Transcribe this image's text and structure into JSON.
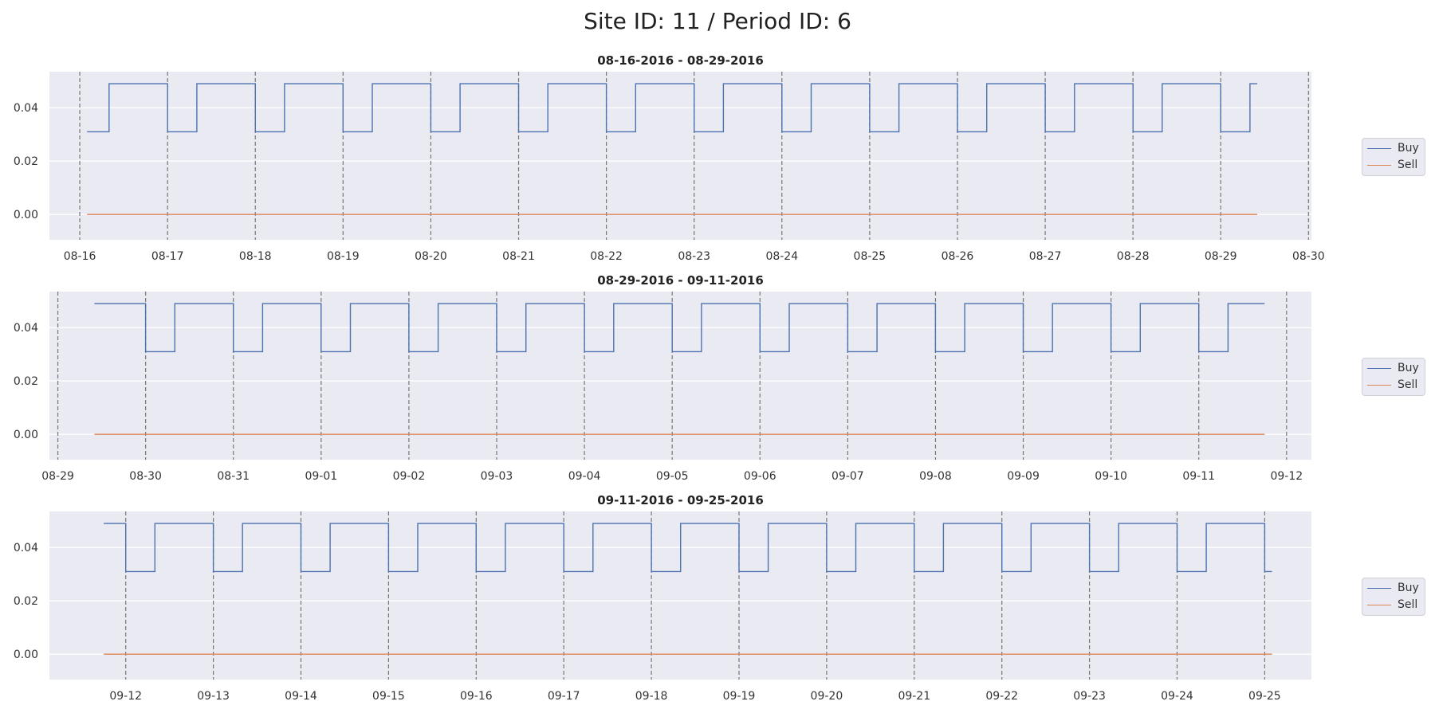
{
  "title": "Site ID: 11 / Period ID: 6",
  "colors": {
    "buy": "#4c72b0",
    "sell": "#dd8452",
    "background": "#eaeaf2",
    "grid": "#ffffff",
    "day_line": "#777777"
  },
  "chart_data": [
    {
      "type": "line",
      "title": "08-16-2016 - 08-29-2016",
      "xlim": [
        "2016-08-15T15:42",
        "2016-08-30T00:48"
      ],
      "ylim": [
        -0.0095,
        0.0535
      ],
      "yticks": [
        0.0,
        0.02,
        0.04
      ],
      "ytick_labels": [
        "0.00",
        "0.02",
        "0.04"
      ],
      "xtick_labels": [
        "08-16",
        "08-17",
        "08-18",
        "08-19",
        "08-20",
        "08-21",
        "08-22",
        "08-23",
        "08-24",
        "08-25",
        "08-26",
        "08-27",
        "08-28",
        "08-29",
        "08-30"
      ],
      "grid": "horizontal",
      "vertical_day_lines": true,
      "legend": "right",
      "series": [
        {
          "name": "Buy",
          "x": [
            "2016-08-16T02:00",
            "2016-08-16T08:00",
            "2016-08-16T08:00",
            "2016-08-17T00:00",
            "2016-08-17T00:00",
            "2016-08-17T08:00",
            "2016-08-17T08:00",
            "2016-08-18T00:00",
            "2016-08-18T00:00",
            "2016-08-18T08:00",
            "2016-08-18T08:00",
            "2016-08-19T00:00",
            "2016-08-19T00:00",
            "2016-08-19T08:00",
            "2016-08-19T08:00",
            "2016-08-20T00:00",
            "2016-08-20T00:00",
            "2016-08-20T08:00",
            "2016-08-20T08:00",
            "2016-08-21T00:00",
            "2016-08-21T00:00",
            "2016-08-21T08:00",
            "2016-08-21T08:00",
            "2016-08-22T00:00",
            "2016-08-22T00:00",
            "2016-08-22T08:00",
            "2016-08-22T08:00",
            "2016-08-23T00:00",
            "2016-08-23T00:00",
            "2016-08-23T08:00",
            "2016-08-23T08:00",
            "2016-08-24T00:00",
            "2016-08-24T00:00",
            "2016-08-24T08:00",
            "2016-08-24T08:00",
            "2016-08-25T00:00",
            "2016-08-25T00:00",
            "2016-08-25T08:00",
            "2016-08-25T08:00",
            "2016-08-26T00:00",
            "2016-08-26T00:00",
            "2016-08-26T08:00",
            "2016-08-26T08:00",
            "2016-08-27T00:00",
            "2016-08-27T00:00",
            "2016-08-27T08:00",
            "2016-08-27T08:00",
            "2016-08-28T00:00",
            "2016-08-28T00:00",
            "2016-08-28T08:00",
            "2016-08-28T08:00",
            "2016-08-29T00:00",
            "2016-08-29T00:00",
            "2016-08-29T08:00",
            "2016-08-29T08:00",
            "2016-08-29T10:00"
          ],
          "y": [
            0.031,
            0.031,
            0.049,
            0.049,
            0.031,
            0.031,
            0.049,
            0.049,
            0.031,
            0.031,
            0.049,
            0.049,
            0.031,
            0.031,
            0.049,
            0.049,
            0.031,
            0.031,
            0.049,
            0.049,
            0.031,
            0.031,
            0.049,
            0.049,
            0.031,
            0.031,
            0.049,
            0.049,
            0.031,
            0.031,
            0.049,
            0.049,
            0.031,
            0.031,
            0.049,
            0.049,
            0.031,
            0.031,
            0.049,
            0.049,
            0.031,
            0.031,
            0.049,
            0.049,
            0.031,
            0.031,
            0.049,
            0.049,
            0.031,
            0.031,
            0.049,
            0.049,
            0.031,
            0.031,
            0.049,
            0.049
          ]
        },
        {
          "name": "Sell",
          "x": [
            "2016-08-16T02:00",
            "2016-08-29T10:00"
          ],
          "y": [
            0.0,
            0.0
          ]
        }
      ]
    },
    {
      "type": "line",
      "title": "08-29-2016 - 09-11-2016",
      "xlim": [
        "2016-08-28T21:42",
        "2016-09-12T06:48"
      ],
      "ylim": [
        -0.0095,
        0.0535
      ],
      "yticks": [
        0.0,
        0.02,
        0.04
      ],
      "ytick_labels": [
        "0.00",
        "0.02",
        "0.04"
      ],
      "xtick_labels": [
        "08-29",
        "08-30",
        "08-31",
        "09-01",
        "09-02",
        "09-03",
        "09-04",
        "09-05",
        "09-06",
        "09-07",
        "09-08",
        "09-09",
        "09-10",
        "09-11",
        "09-12"
      ],
      "grid": "horizontal",
      "vertical_day_lines": true,
      "legend": "right",
      "series": [
        {
          "name": "Buy",
          "x": [
            "2016-08-29T10:00",
            "2016-08-30T00:00",
            "2016-08-30T00:00",
            "2016-08-30T08:00",
            "2016-08-30T08:00",
            "2016-08-31T00:00",
            "2016-08-31T00:00",
            "2016-08-31T08:00",
            "2016-08-31T08:00",
            "2016-09-01T00:00",
            "2016-09-01T00:00",
            "2016-09-01T08:00",
            "2016-09-01T08:00",
            "2016-09-02T00:00",
            "2016-09-02T00:00",
            "2016-09-02T08:00",
            "2016-09-02T08:00",
            "2016-09-03T00:00",
            "2016-09-03T00:00",
            "2016-09-03T08:00",
            "2016-09-03T08:00",
            "2016-09-04T00:00",
            "2016-09-04T00:00",
            "2016-09-04T08:00",
            "2016-09-04T08:00",
            "2016-09-05T00:00",
            "2016-09-05T00:00",
            "2016-09-05T08:00",
            "2016-09-05T08:00",
            "2016-09-06T00:00",
            "2016-09-06T00:00",
            "2016-09-06T08:00",
            "2016-09-06T08:00",
            "2016-09-07T00:00",
            "2016-09-07T00:00",
            "2016-09-07T08:00",
            "2016-09-07T08:00",
            "2016-09-08T00:00",
            "2016-09-08T00:00",
            "2016-09-08T08:00",
            "2016-09-08T08:00",
            "2016-09-09T00:00",
            "2016-09-09T00:00",
            "2016-09-09T08:00",
            "2016-09-09T08:00",
            "2016-09-10T00:00",
            "2016-09-10T00:00",
            "2016-09-10T08:00",
            "2016-09-10T08:00",
            "2016-09-11T00:00",
            "2016-09-11T00:00",
            "2016-09-11T08:00",
            "2016-09-11T08:00",
            "2016-09-11T18:00"
          ],
          "y": [
            0.049,
            0.049,
            0.031,
            0.031,
            0.049,
            0.049,
            0.031,
            0.031,
            0.049,
            0.049,
            0.031,
            0.031,
            0.049,
            0.049,
            0.031,
            0.031,
            0.049,
            0.049,
            0.031,
            0.031,
            0.049,
            0.049,
            0.031,
            0.031,
            0.049,
            0.049,
            0.031,
            0.031,
            0.049,
            0.049,
            0.031,
            0.031,
            0.049,
            0.049,
            0.031,
            0.031,
            0.049,
            0.049,
            0.031,
            0.031,
            0.049,
            0.049,
            0.031,
            0.031,
            0.049,
            0.049,
            0.031,
            0.031,
            0.049,
            0.049,
            0.031,
            0.031,
            0.049,
            0.049
          ]
        },
        {
          "name": "Sell",
          "x": [
            "2016-08-29T10:00",
            "2016-09-11T18:00"
          ],
          "y": [
            0.0,
            0.0
          ]
        }
      ]
    },
    {
      "type": "line",
      "title": "09-11-2016 - 09-25-2016",
      "xlim": [
        "2016-09-11T03:06",
        "2016-09-25T12:48"
      ],
      "ylim": [
        -0.0095,
        0.0535
      ],
      "yticks": [
        0.0,
        0.02,
        0.04
      ],
      "ytick_labels": [
        "0.00",
        "0.02",
        "0.04"
      ],
      "xtick_labels": [
        "09-12",
        "09-13",
        "09-14",
        "09-15",
        "09-16",
        "09-17",
        "09-18",
        "09-19",
        "09-20",
        "09-21",
        "09-22",
        "09-23",
        "09-24",
        "09-25"
      ],
      "grid": "horizontal",
      "vertical_day_lines": true,
      "legend": "right",
      "series": [
        {
          "name": "Buy",
          "x": [
            "2016-09-11T18:00",
            "2016-09-12T00:00",
            "2016-09-12T00:00",
            "2016-09-12T08:00",
            "2016-09-12T08:00",
            "2016-09-13T00:00",
            "2016-09-13T00:00",
            "2016-09-13T08:00",
            "2016-09-13T08:00",
            "2016-09-14T00:00",
            "2016-09-14T00:00",
            "2016-09-14T08:00",
            "2016-09-14T08:00",
            "2016-09-15T00:00",
            "2016-09-15T00:00",
            "2016-09-15T08:00",
            "2016-09-15T08:00",
            "2016-09-16T00:00",
            "2016-09-16T00:00",
            "2016-09-16T08:00",
            "2016-09-16T08:00",
            "2016-09-17T00:00",
            "2016-09-17T00:00",
            "2016-09-17T08:00",
            "2016-09-17T08:00",
            "2016-09-18T00:00",
            "2016-09-18T00:00",
            "2016-09-18T08:00",
            "2016-09-18T08:00",
            "2016-09-19T00:00",
            "2016-09-19T00:00",
            "2016-09-19T08:00",
            "2016-09-19T08:00",
            "2016-09-20T00:00",
            "2016-09-20T00:00",
            "2016-09-20T08:00",
            "2016-09-20T08:00",
            "2016-09-21T00:00",
            "2016-09-21T00:00",
            "2016-09-21T08:00",
            "2016-09-21T08:00",
            "2016-09-22T00:00",
            "2016-09-22T00:00",
            "2016-09-22T08:00",
            "2016-09-22T08:00",
            "2016-09-23T00:00",
            "2016-09-23T00:00",
            "2016-09-23T08:00",
            "2016-09-23T08:00",
            "2016-09-24T00:00",
            "2016-09-24T00:00",
            "2016-09-24T08:00",
            "2016-09-24T08:00",
            "2016-09-25T00:00",
            "2016-09-25T00:00",
            "2016-09-25T02:00"
          ],
          "y": [
            0.049,
            0.049,
            0.031,
            0.031,
            0.049,
            0.049,
            0.031,
            0.031,
            0.049,
            0.049,
            0.031,
            0.031,
            0.049,
            0.049,
            0.031,
            0.031,
            0.049,
            0.049,
            0.031,
            0.031,
            0.049,
            0.049,
            0.031,
            0.031,
            0.049,
            0.049,
            0.031,
            0.031,
            0.049,
            0.049,
            0.031,
            0.031,
            0.049,
            0.049,
            0.031,
            0.031,
            0.049,
            0.049,
            0.031,
            0.031,
            0.049,
            0.049,
            0.031,
            0.031,
            0.049,
            0.049,
            0.031,
            0.031,
            0.049,
            0.049,
            0.031,
            0.031,
            0.049,
            0.049,
            0.031,
            0.031
          ]
        },
        {
          "name": "Sell",
          "x": [
            "2016-09-11T18:00",
            "2016-09-25T02:00"
          ],
          "y": [
            0.0,
            0.0
          ]
        }
      ]
    }
  ]
}
